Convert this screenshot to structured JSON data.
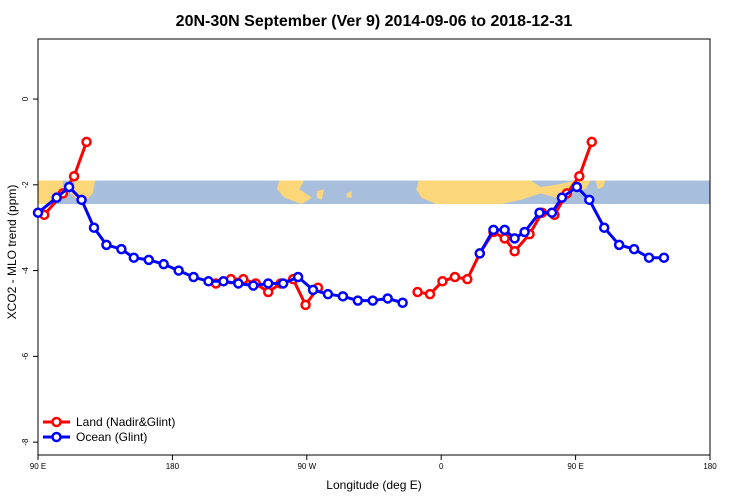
{
  "chart_data": {
    "type": "line",
    "title": "20N-30N September (Ver 9)   2014-09-06 to 2018-12-31",
    "xlabel": "Longitude (deg E)",
    "ylabel": "XCO2 - MLO trend (ppm)",
    "xlim": [
      -90,
      180
    ],
    "ylim": [
      -8.3,
      1.4
    ],
    "x_ticks": [
      {
        "value": -90,
        "label": "90 E"
      },
      {
        "value": -36,
        "label": "180"
      },
      {
        "value": 18,
        "label": "90 W"
      },
      {
        "value": 72,
        "label": "0"
      },
      {
        "value": 126,
        "label": "90 E"
      },
      {
        "value": 180,
        "label": "180"
      }
    ],
    "y_ticks": [
      {
        "value": 0,
        "label": "0"
      },
      {
        "value": -2,
        "label": "-2"
      },
      {
        "value": -4,
        "label": "-4"
      },
      {
        "value": -6,
        "label": "-6"
      },
      {
        "value": -8,
        "label": "-8"
      }
    ],
    "map_band": {
      "y_top": -1.9,
      "y_bottom": -2.45,
      "ocean_color": "#a7bedd",
      "land_color": "#fcd77a"
    },
    "legend": {
      "position": "bottom-left"
    },
    "series": [
      {
        "name": "Land (Nadir&Glint)",
        "color": "#ff0000",
        "segments": [
          [
            [
              -87.5,
              -2.7
            ],
            [
              -80,
              -2.2
            ],
            [
              -75.5,
              -1.8
            ],
            [
              -70.5,
              -1.0
            ]
          ],
          [
            [
              -18.5,
              -4.3
            ],
            [
              -12.5,
              -4.2
            ],
            [
              -7.5,
              -4.2
            ],
            [
              -2.5,
              -4.3
            ],
            [
              2.5,
              -4.5
            ],
            [
              7.5,
              -4.3
            ],
            [
              12.5,
              -4.2
            ],
            [
              17.5,
              -4.8
            ],
            [
              22.5,
              -4.4
            ]
          ],
          [
            [
              62.5,
              -4.5
            ],
            [
              67.5,
              -4.55
            ],
            [
              72.5,
              -4.25
            ],
            [
              77.5,
              -4.15
            ],
            [
              82.5,
              -4.2
            ],
            [
              87.5,
              -3.6
            ],
            [
              93,
              -3.1
            ],
            [
              97.5,
              -3.25
            ],
            [
              101.5,
              -3.55
            ],
            [
              107.5,
              -3.15
            ],
            [
              112.5,
              -2.65
            ],
            [
              117.5,
              -2.7
            ],
            [
              122.5,
              -2.2
            ],
            [
              127.5,
              -1.8
            ],
            [
              132.5,
              -1.0
            ]
          ]
        ]
      },
      {
        "name": "Ocean (Glint)",
        "color": "#0000ff",
        "segments": [
          [
            [
              -90,
              -2.65
            ],
            [
              -82.5,
              -2.3
            ],
            [
              -77.5,
              -2.05
            ],
            [
              -72.5,
              -2.35
            ],
            [
              -67.5,
              -3.0
            ],
            [
              -62.5,
              -3.4
            ],
            [
              -56.5,
              -3.5
            ],
            [
              -51.5,
              -3.7
            ],
            [
              -45.5,
              -3.75
            ],
            [
              -39.5,
              -3.85
            ],
            [
              -33.5,
              -4.0
            ],
            [
              -27.5,
              -4.15
            ],
            [
              -21.5,
              -4.25
            ],
            [
              -15.5,
              -4.25
            ],
            [
              -9.5,
              -4.3
            ],
            [
              -3.5,
              -4.35
            ],
            [
              2.5,
              -4.3
            ],
            [
              8.5,
              -4.3
            ],
            [
              14.5,
              -4.15
            ],
            [
              20.5,
              -4.45
            ],
            [
              26.5,
              -4.55
            ],
            [
              32.5,
              -4.6
            ],
            [
              38.5,
              -4.7
            ],
            [
              44.5,
              -4.7
            ],
            [
              50.5,
              -4.65
            ],
            [
              56.5,
              -4.75
            ]
          ],
          [
            [
              87.5,
              -3.6
            ],
            [
              93,
              -3.05
            ],
            [
              97.5,
              -3.05
            ],
            [
              101.5,
              -3.25
            ],
            [
              105.5,
              -3.1
            ],
            [
              111.5,
              -2.65
            ],
            [
              116.5,
              -2.65
            ],
            [
              120.5,
              -2.3
            ],
            [
              126.5,
              -2.05
            ],
            [
              131.5,
              -2.35
            ],
            [
              137.5,
              -3.0
            ],
            [
              143.5,
              -3.4
            ],
            [
              149.5,
              -3.5
            ],
            [
              155.5,
              -3.7
            ],
            [
              161.5,
              -3.7
            ]
          ]
        ]
      }
    ]
  }
}
